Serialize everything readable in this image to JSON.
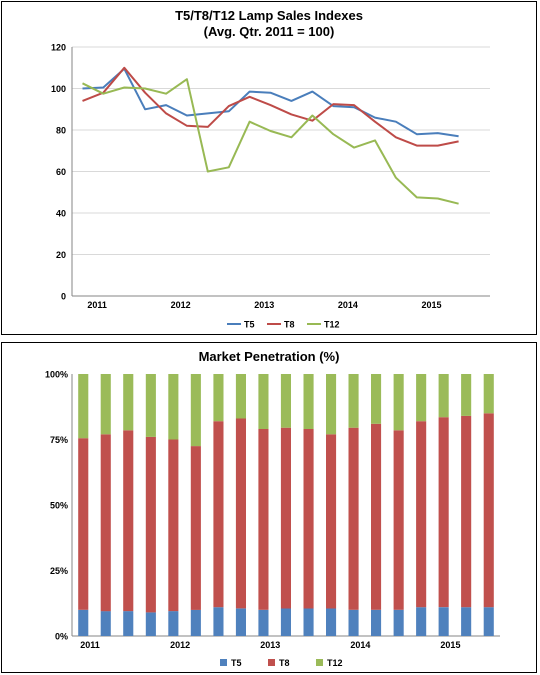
{
  "chart_data": [
    {
      "type": "line",
      "title": "T5/T8/T12 Lamp Sales Indexes",
      "subtitle": "(Avg. Qtr. 2011 = 100)",
      "x": [
        1,
        2,
        3,
        4,
        5,
        6,
        7,
        8,
        9,
        10,
        11,
        12,
        13,
        14,
        15,
        16,
        17,
        18,
        19,
        20
      ],
      "x_tick_labels": [
        "2011",
        "2012",
        "2013",
        "2014",
        "2015"
      ],
      "ylim": [
        0,
        120
      ],
      "y_ticks": [
        0,
        20,
        40,
        60,
        80,
        100,
        120
      ],
      "grid": true,
      "legend": "bottom",
      "series": [
        {
          "name": "T5",
          "color": "#4a7ebb",
          "values": [
            100,
            100.5,
            109.5,
            90,
            92,
            87,
            88,
            89,
            98.5,
            98,
            94,
            98.5,
            91.5,
            91,
            86,
            84,
            78,
            78.5,
            77,
            null
          ]
        },
        {
          "name": "T8",
          "color": "#be4b48",
          "values": [
            94,
            98,
            110,
            98,
            88,
            82,
            81.5,
            91.5,
            96,
            92,
            87.5,
            84.5,
            92.5,
            92,
            84,
            76.5,
            72.5,
            72.5,
            74.5,
            null
          ]
        },
        {
          "name": "T12",
          "color": "#98b954",
          "values": [
            102.5,
            97.5,
            100.5,
            100,
            97.5,
            104.5,
            60,
            62,
            84,
            79.5,
            76.5,
            87,
            78,
            71.5,
            75,
            57,
            47.5,
            47,
            44.5,
            null
          ]
        }
      ]
    },
    {
      "type": "bar",
      "stacked": true,
      "title": "Market Penetration (%)",
      "x_tick_labels": [
        "2011",
        "2012",
        "2013",
        "2014",
        "2015"
      ],
      "ylim": [
        0,
        100
      ],
      "y_ticks": [
        "0%",
        "25%",
        "50%",
        "75%",
        "100%"
      ],
      "legend": "bottom",
      "series": [
        {
          "name": "T5",
          "color": "#4f81bd",
          "values": [
            10,
            9.5,
            9.5,
            9,
            9.5,
            10,
            11,
            10.5,
            10,
            10.5,
            10.5,
            10.5,
            10,
            10,
            10,
            11,
            11,
            11,
            11
          ]
        },
        {
          "name": "T8",
          "color": "#c0504d",
          "values": [
            65.5,
            67.5,
            69,
            67,
            65.5,
            62.5,
            71,
            72.5,
            69,
            69,
            68.5,
            66.5,
            69.5,
            71,
            68.5,
            71,
            72.5,
            73,
            74
          ]
        },
        {
          "name": "T12",
          "color": "#9bbb59",
          "values": [
            24.5,
            23,
            21.5,
            24,
            25,
            27.5,
            18,
            17,
            21,
            20.5,
            21,
            23,
            20.5,
            19,
            21.5,
            18,
            16.5,
            16,
            15
          ]
        }
      ]
    }
  ]
}
